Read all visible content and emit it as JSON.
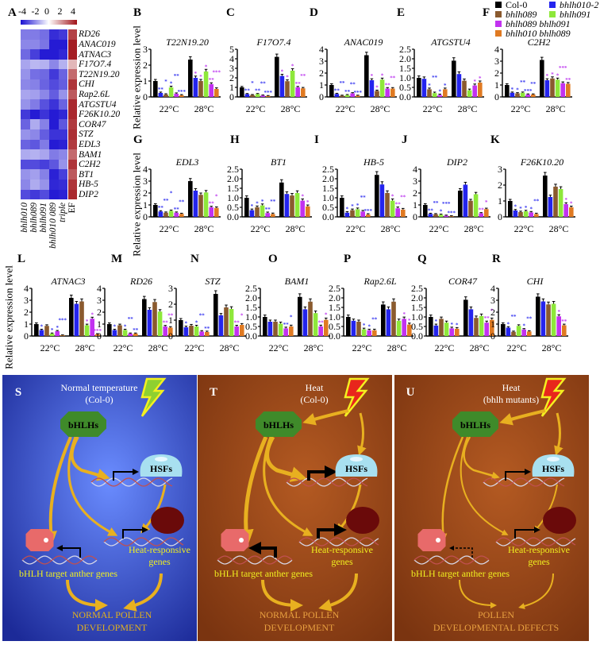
{
  "panel_letters": {
    "A": "A",
    "B": "B",
    "C": "C",
    "D": "D",
    "E": "E",
    "F": "F",
    "G": "G",
    "H": "H",
    "I": "I",
    "J": "J",
    "K": "K",
    "L": "L",
    "M": "M",
    "N": "N",
    "O": "O",
    "P": "P",
    "Q": "Q",
    "R": "R"
  },
  "ylabel": "Relative expression level",
  "legend": [
    {
      "name": "Col-0",
      "color": "#000000"
    },
    {
      "name": "bhlh010-2",
      "color": "#2424ee"
    },
    {
      "name": "bhlh089",
      "color": "#8a5a2e"
    },
    {
      "name": "bhlh091",
      "color": "#8ee83a"
    },
    {
      "name": "bhlh089 bhlh091",
      "color": "#c232f0"
    },
    {
      "name": "bhlh010 bhlh089",
      "color": "#e07a22"
    }
  ],
  "significance_colors": {
    "22C": "#3a3af0",
    "28C": "#c040f0"
  },
  "chart_data": [
    {
      "panel": "A",
      "type": "heatmap",
      "colorbar_ticks": [
        "-4",
        "-2",
        "0",
        "2",
        "4"
      ],
      "colorbar_range": [
        -4,
        4
      ],
      "columns": [
        "bhlh010",
        "bhlh089",
        "bhlh091",
        "bhlh010 089",
        "triple",
        "EF"
      ],
      "rows": [
        "RD26",
        "ANAC019",
        "ATNAC3",
        "F17O7.4",
        "T22N19.20",
        "CHI",
        "Rap2.6L",
        "ATGSTU4",
        "F26K10.20",
        "COR47",
        "STZ",
        "EDL3",
        "BAM1",
        "C2H2",
        "BT1",
        "HB-5",
        "DIP2"
      ],
      "values": [
        [
          -2.2,
          -2.2,
          -2.4,
          -3.5,
          -3.3,
          3.2
        ],
        [
          -2,
          -2,
          -2.3,
          -3.8,
          -3.8,
          3.8
        ],
        [
          -2.5,
          -3.2,
          -3.8,
          -3.8,
          -3.6,
          3.8
        ],
        [
          -1.5,
          -1.2,
          -1.3,
          -2,
          -1.3,
          1.2
        ],
        [
          -1.8,
          -2.4,
          -2.5,
          -3.3,
          -2.6,
          2.5
        ],
        [
          -2,
          -2.1,
          -2.6,
          -3,
          -2.7,
          3.4
        ],
        [
          -1.5,
          -1.6,
          -2,
          -2.7,
          -1.8,
          2.8
        ],
        [
          -1.8,
          -2.2,
          -2.9,
          -3.4,
          -2.6,
          3.6
        ],
        [
          -3.3,
          -3.8,
          -3.4,
          -3.8,
          -3.6,
          3.6
        ],
        [
          -2.6,
          -1.4,
          -2.1,
          -3.8,
          -2.8,
          3.3
        ],
        [
          -1.8,
          -2,
          -2.7,
          -3.4,
          -3.4,
          3.5
        ],
        [
          -2.6,
          -2.8,
          -2.2,
          -3.8,
          -3.7,
          3.3
        ],
        [
          -1.4,
          -1.3,
          -1.5,
          -2.2,
          -2,
          2.5
        ],
        [
          -3,
          -3,
          -3.2,
          -2.8,
          -1.8,
          3.4
        ],
        [
          -1.8,
          -1.6,
          -2.1,
          -3.7,
          -3.2,
          2.8
        ],
        [
          -2,
          -1.4,
          -1.8,
          -3.6,
          -3.5,
          3.4
        ],
        [
          -3,
          -3.3,
          -3,
          -3.8,
          -3.7,
          3.6
        ]
      ]
    },
    {
      "panel": "B",
      "type": "bar",
      "title": "T22N19.20",
      "categories": [
        "22°C",
        "28°C"
      ],
      "ylim": [
        0,
        3
      ],
      "ytick_labels": [
        "0",
        "1",
        "2",
        "3"
      ],
      "values": [
        [
          1.0,
          0.25,
          0.15,
          0.6,
          0.2,
          0.1
        ],
        [
          2.35,
          1.2,
          1.0,
          1.6,
          0.8,
          0.5
        ]
      ],
      "significance": [
        [
          "",
          "**",
          "*",
          "*",
          "**",
          "***"
        ],
        [
          "",
          "*",
          "*",
          "*",
          "**",
          "***"
        ]
      ]
    },
    {
      "panel": "C",
      "type": "bar",
      "title": "F17O7.4",
      "categories": [
        "22°C",
        "28°C"
      ],
      "ylim": [
        0,
        5
      ],
      "ytick_labels": [
        "0",
        "1",
        "2",
        "3",
        "4",
        "5"
      ],
      "values": [
        [
          1.0,
          0.3,
          0.2,
          0.3,
          0.15,
          0.1
        ],
        [
          4.2,
          2.2,
          1.65,
          2.75,
          1.0,
          0.9
        ]
      ],
      "significance": [
        [
          "",
          "**",
          "*",
          "**",
          "**",
          "***"
        ],
        [
          "",
          "*",
          "*",
          "*",
          "**",
          "**"
        ]
      ]
    },
    {
      "panel": "D",
      "type": "bar",
      "title": "ANAC019",
      "categories": [
        "22°C",
        "28°C"
      ],
      "ylim": [
        0,
        4
      ],
      "ytick_labels": [
        "0",
        "1",
        "2",
        "3",
        "4"
      ],
      "values": [
        [
          1.0,
          0.25,
          0.1,
          0.15,
          0.3,
          0.1
        ],
        [
          3.5,
          1.4,
          0.5,
          1.45,
          0.7,
          0.7
        ]
      ],
      "significance": [
        [
          "",
          "**",
          "**",
          "**",
          "**",
          "***"
        ],
        [
          "",
          "*",
          "*",
          "*",
          "**",
          "**"
        ]
      ]
    },
    {
      "panel": "E",
      "type": "bar",
      "title": "ATGSTU4",
      "categories": [
        "22°C",
        "28°C"
      ],
      "ylim": [
        0,
        2.5
      ],
      "ytick_labels": [
        "0.0",
        "0.5",
        "1.0",
        "1.5",
        "2.0",
        "2.5"
      ],
      "values": [
        [
          1.0,
          0.95,
          0.4,
          0.2,
          0.1,
          0.4
        ],
        [
          1.9,
          1.2,
          0.85,
          0.35,
          0.6,
          0.75
        ]
      ],
      "significance": [
        [
          "",
          "",
          "*",
          "**",
          "*",
          "*"
        ],
        [
          "",
          "",
          "",
          "",
          "*",
          "*"
        ]
      ]
    },
    {
      "panel": "F",
      "type": "bar",
      "title": "C2H2",
      "categories": [
        "22°C",
        "28°C"
      ],
      "ylim": [
        0,
        4
      ],
      "ytick_labels": [
        "0",
        "1",
        "2",
        "3",
        "4"
      ],
      "values": [
        [
          1.0,
          0.35,
          0.3,
          0.35,
          0.2,
          0.2
        ],
        [
          3.1,
          1.4,
          1.55,
          1.45,
          1.15,
          1.1
        ]
      ],
      "significance": [
        [
          "",
          "*",
          "*",
          "**",
          "***",
          "**"
        ],
        [
          "",
          "*",
          "*",
          "*",
          "***",
          "**"
        ]
      ]
    },
    {
      "panel": "G",
      "type": "bar",
      "title": "EDL3",
      "categories": [
        "22°C",
        "28°C"
      ],
      "ylim": [
        0,
        4
      ],
      "ytick_labels": [
        "0",
        "1",
        "2",
        "3",
        "4"
      ],
      "values": [
        [
          1.0,
          0.45,
          0.35,
          0.5,
          0.35,
          0.25
        ],
        [
          3.0,
          2.2,
          1.85,
          2.05,
          0.8,
          0.75
        ]
      ],
      "significance": [
        [
          "",
          "**",
          "**",
          "*",
          "**",
          "**"
        ],
        [
          "",
          "",
          "",
          "",
          "**",
          "*"
        ]
      ]
    },
    {
      "panel": "H",
      "type": "bar",
      "title": "BT1",
      "categories": [
        "22°C",
        "28°C"
      ],
      "ylim": [
        0,
        2.5
      ],
      "ytick_labels": [
        "0.0",
        "0.5",
        "1.0",
        "1.5",
        "2.0",
        "2.5"
      ],
      "values": [
        [
          1.0,
          0.35,
          0.5,
          0.6,
          0.2,
          0.15
        ],
        [
          1.8,
          1.2,
          1.12,
          1.25,
          0.85,
          0.55
        ]
      ],
      "significance": [
        [
          "",
          "*",
          "*",
          "*",
          "**",
          "**"
        ],
        [
          "",
          "",
          "",
          "",
          "*",
          "*"
        ]
      ]
    },
    {
      "panel": "I",
      "type": "bar",
      "title": "HB-5",
      "categories": [
        "22°C",
        "28°C"
      ],
      "ylim": [
        0,
        2.5
      ],
      "ytick_labels": [
        "0.0",
        "0.5",
        "1.0",
        "1.5",
        "2.0",
        "2.5"
      ],
      "values": [
        [
          1.0,
          0.22,
          0.35,
          0.4,
          0.28,
          0.12
        ],
        [
          2.2,
          1.7,
          1.25,
          0.85,
          0.45,
          0.38
        ]
      ],
      "significance": [
        [
          "",
          "*",
          "*",
          "*",
          "**",
          "***"
        ],
        [
          "",
          "",
          "",
          "*",
          "**",
          "**"
        ]
      ]
    },
    {
      "panel": "J",
      "type": "bar",
      "title": "DIP2",
      "categories": [
        "22°C",
        "28°C"
      ],
      "ylim": [
        0,
        4
      ],
      "ytick_labels": [
        "0",
        "1",
        "2",
        "3",
        "4"
      ],
      "values": [
        [
          1.0,
          0.25,
          0.22,
          0.18,
          0.1,
          0.05
        ],
        [
          2.2,
          2.7,
          1.35,
          1.9,
          0.3,
          0.65
        ]
      ],
      "significance": [
        [
          "",
          "**",
          "**",
          "*",
          "***",
          "***"
        ],
        [
          "",
          "",
          "",
          "",
          "**",
          "*"
        ]
      ]
    },
    {
      "panel": "K",
      "type": "bar",
      "title": "F26K10.20",
      "categories": [
        "22°C",
        "28°C"
      ],
      "ylim": [
        0,
        3
      ],
      "ytick_labels": [
        "0",
        "1",
        "2",
        "3"
      ],
      "values": [
        [
          1.0,
          0.4,
          0.3,
          0.35,
          0.28,
          0.18
        ],
        [
          2.6,
          1.25,
          1.9,
          1.75,
          0.8,
          0.6
        ]
      ],
      "significance": [
        [
          "",
          "*",
          "*",
          "*",
          "*",
          "**"
        ],
        [
          "",
          "",
          "",
          "",
          "*",
          "*"
        ]
      ]
    },
    {
      "panel": "L",
      "type": "bar",
      "title": "ATNAC3",
      "categories": [
        "22°C",
        "28°C"
      ],
      "ylim": [
        0,
        4
      ],
      "ytick_labels": [
        "0",
        "1",
        "2",
        "3",
        "4"
      ],
      "values": [
        [
          1.0,
          0.5,
          0.85,
          0.2,
          0.4,
          0.05
        ],
        [
          3.2,
          2.7,
          2.9,
          0.9,
          1.45,
          0.15
        ]
      ],
      "significance": [
        [
          "",
          "*",
          "",
          "*",
          "*",
          "***"
        ],
        [
          "",
          "",
          "",
          "*",
          "*",
          "***"
        ]
      ]
    },
    {
      "panel": "M",
      "type": "bar",
      "title": "RD26",
      "categories": [
        "22°C",
        "28°C"
      ],
      "ylim": [
        0,
        4
      ],
      "ytick_labels": [
        "0",
        "1",
        "2",
        "3",
        "4"
      ],
      "values": [
        [
          1.0,
          0.5,
          0.9,
          0.5,
          0.2,
          0.2
        ],
        [
          3.1,
          2.2,
          2.85,
          2.05,
          0.8,
          0.7
        ]
      ],
      "significance": [
        [
          "",
          "*",
          "",
          "*",
          "**",
          "**"
        ],
        [
          "",
          "",
          "",
          "",
          "**",
          "**"
        ]
      ]
    },
    {
      "panel": "N",
      "type": "bar",
      "title": "STZ",
      "categories": [
        "22°C",
        "28°C"
      ],
      "ylim": [
        0,
        3
      ],
      "ytick_labels": [
        "0",
        "1",
        "2",
        "3"
      ],
      "values": [
        [
          1.0,
          0.55,
          0.65,
          0.6,
          0.28,
          0.25
        ],
        [
          2.65,
          1.3,
          1.8,
          1.7,
          0.6,
          0.7
        ]
      ],
      "significance": [
        [
          "",
          "*",
          "",
          "*",
          "**",
          "**"
        ],
        [
          "",
          "",
          "",
          "",
          "**",
          "*"
        ]
      ]
    },
    {
      "panel": "O",
      "type": "bar",
      "title": "BAM1",
      "categories": [
        "22°C",
        "28°C"
      ],
      "ylim": [
        0,
        2.5
      ],
      "ytick_labels": [
        "0.0",
        "0.5",
        "1.0",
        "1.5",
        "2.0",
        "2.5"
      ],
      "values": [
        [
          1.0,
          0.75,
          0.75,
          0.65,
          0.4,
          0.5
        ],
        [
          2.05,
          1.4,
          1.8,
          1.2,
          0.5,
          0.85
        ]
      ],
      "significance": [
        [
          "",
          "",
          "",
          "",
          "**",
          "*"
        ],
        [
          "",
          "",
          "",
          "",
          "**",
          "*"
        ]
      ]
    },
    {
      "panel": "P",
      "type": "bar",
      "title": "Rap2.6L",
      "categories": [
        "22°C",
        "28°C"
      ],
      "ylim": [
        0,
        2.5
      ],
      "ytick_labels": [
        "0.0",
        "0.5",
        "1.0",
        "1.5",
        "2.0",
        "2.5"
      ],
      "values": [
        [
          1.0,
          0.8,
          0.75,
          0.35,
          0.3,
          0.3
        ],
        [
          1.65,
          1.4,
          1.8,
          0.8,
          0.9,
          0.6
        ]
      ],
      "significance": [
        [
          "",
          "",
          "",
          "*",
          "*",
          "**"
        ],
        [
          "",
          "",
          "",
          "",
          "*",
          "*"
        ]
      ]
    },
    {
      "panel": "Q",
      "type": "bar",
      "title": "COR47",
      "categories": [
        "22°C",
        "28°C"
      ],
      "ylim": [
        0,
        2.5
      ],
      "ytick_labels": [
        "0.0",
        "0.5",
        "1.0",
        "1.5",
        "2.0",
        "2.5"
      ],
      "values": [
        [
          1.0,
          0.55,
          0.9,
          0.7,
          0.4,
          0.38
        ],
        [
          1.9,
          1.4,
          0.95,
          1.05,
          0.7,
          0.85
        ]
      ],
      "significance": [
        [
          "",
          "*",
          "",
          "",
          "*",
          "*"
        ],
        [
          "",
          "",
          "",
          "",
          "**",
          "*"
        ]
      ]
    },
    {
      "panel": "R",
      "type": "bar",
      "title": "CHI",
      "categories": [
        "22°C",
        "28°C"
      ],
      "ylim": [
        0,
        4
      ],
      "ytick_labels": [
        "0",
        "1",
        "2",
        "3",
        "4"
      ],
      "values": [
        [
          1.0,
          0.7,
          0.35,
          0.85,
          0.55,
          0.38
        ],
        [
          3.3,
          2.9,
          2.65,
          2.7,
          1.65,
          0.9
        ]
      ],
      "significance": [
        [
          "",
          "*",
          "**",
          "",
          "*",
          "**"
        ],
        [
          "",
          "",
          "",
          "",
          "*",
          "**"
        ]
      ]
    }
  ],
  "diagram": {
    "panels": [
      {
        "letter": "S",
        "title1": "Normal temperature",
        "title2": "(Col-0)",
        "bhlhs": "bHLHs",
        "hsfs": "HSFs",
        "heat1": "Heat-responsive",
        "heat2": "genes",
        "anther": "bHLH target anther genes",
        "out1": "NORMAL POLLEN",
        "out2": "DEVELOPMENT",
        "bg": "#3d5fe0",
        "lightning": "#8fd030"
      },
      {
        "letter": "T",
        "title1": "Heat",
        "title2": "(Col-0)",
        "bhlhs": "bHLHs",
        "hsfs": "HSFs",
        "heat1": "Heat-responsive",
        "heat2": "genes",
        "anther": "bHLH target anther genes",
        "out1": "NORMAL POLLEN",
        "out2": "DEVELOPMENT",
        "bg": "#a24c1a",
        "lightning": "#e8261c"
      },
      {
        "letter": "U",
        "title1": "Heat",
        "title2": "(bhlh mutants)",
        "bhlhs": "bHLHs",
        "hsfs": "HSFs",
        "heat1": "Heat-responsive",
        "heat2": "genes",
        "anther": "bHLH target anther genes",
        "out1": "POLLEN",
        "out2": "DEVELOPMENTAL DEFECTS",
        "bg": "#a24c1a",
        "lightning": "#e8261c"
      }
    ]
  }
}
